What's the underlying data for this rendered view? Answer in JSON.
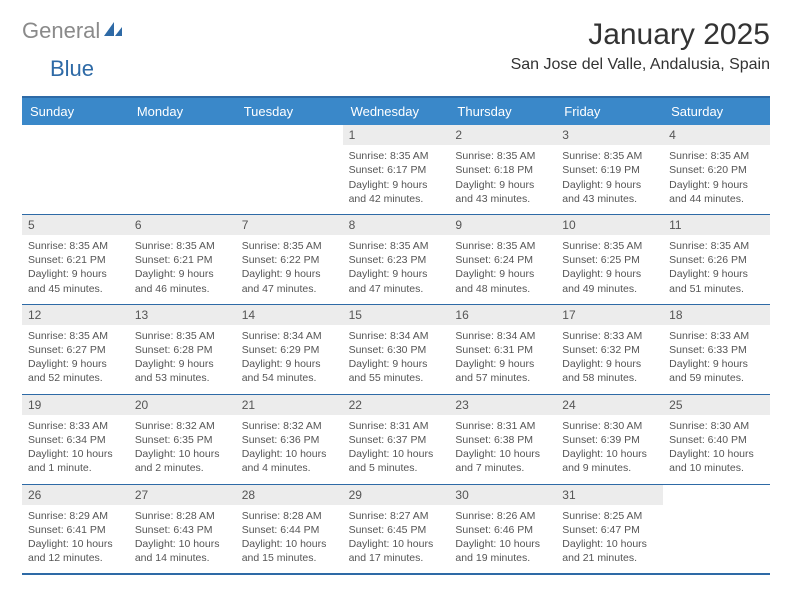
{
  "brand": {
    "left": "General",
    "right": "Blue"
  },
  "title": "January 2025",
  "location": "San Jose del Valle, Andalusia, Spain",
  "colors": {
    "header_bg": "#3a88c9",
    "border": "#2e6aa6",
    "daynum_bg": "#ececec"
  },
  "weekdays": [
    "Sunday",
    "Monday",
    "Tuesday",
    "Wednesday",
    "Thursday",
    "Friday",
    "Saturday"
  ],
  "weeks": [
    [
      {
        "n": "",
        "sr": "",
        "ss": "",
        "dl": ""
      },
      {
        "n": "",
        "sr": "",
        "ss": "",
        "dl": ""
      },
      {
        "n": "",
        "sr": "",
        "ss": "",
        "dl": ""
      },
      {
        "n": "1",
        "sr": "8:35 AM",
        "ss": "6:17 PM",
        "dl": "9 hours and 42 minutes."
      },
      {
        "n": "2",
        "sr": "8:35 AM",
        "ss": "6:18 PM",
        "dl": "9 hours and 43 minutes."
      },
      {
        "n": "3",
        "sr": "8:35 AM",
        "ss": "6:19 PM",
        "dl": "9 hours and 43 minutes."
      },
      {
        "n": "4",
        "sr": "8:35 AM",
        "ss": "6:20 PM",
        "dl": "9 hours and 44 minutes."
      }
    ],
    [
      {
        "n": "5",
        "sr": "8:35 AM",
        "ss": "6:21 PM",
        "dl": "9 hours and 45 minutes."
      },
      {
        "n": "6",
        "sr": "8:35 AM",
        "ss": "6:21 PM",
        "dl": "9 hours and 46 minutes."
      },
      {
        "n": "7",
        "sr": "8:35 AM",
        "ss": "6:22 PM",
        "dl": "9 hours and 47 minutes."
      },
      {
        "n": "8",
        "sr": "8:35 AM",
        "ss": "6:23 PM",
        "dl": "9 hours and 47 minutes."
      },
      {
        "n": "9",
        "sr": "8:35 AM",
        "ss": "6:24 PM",
        "dl": "9 hours and 48 minutes."
      },
      {
        "n": "10",
        "sr": "8:35 AM",
        "ss": "6:25 PM",
        "dl": "9 hours and 49 minutes."
      },
      {
        "n": "11",
        "sr": "8:35 AM",
        "ss": "6:26 PM",
        "dl": "9 hours and 51 minutes."
      }
    ],
    [
      {
        "n": "12",
        "sr": "8:35 AM",
        "ss": "6:27 PM",
        "dl": "9 hours and 52 minutes."
      },
      {
        "n": "13",
        "sr": "8:35 AM",
        "ss": "6:28 PM",
        "dl": "9 hours and 53 minutes."
      },
      {
        "n": "14",
        "sr": "8:34 AM",
        "ss": "6:29 PM",
        "dl": "9 hours and 54 minutes."
      },
      {
        "n": "15",
        "sr": "8:34 AM",
        "ss": "6:30 PM",
        "dl": "9 hours and 55 minutes."
      },
      {
        "n": "16",
        "sr": "8:34 AM",
        "ss": "6:31 PM",
        "dl": "9 hours and 57 minutes."
      },
      {
        "n": "17",
        "sr": "8:33 AM",
        "ss": "6:32 PM",
        "dl": "9 hours and 58 minutes."
      },
      {
        "n": "18",
        "sr": "8:33 AM",
        "ss": "6:33 PM",
        "dl": "9 hours and 59 minutes."
      }
    ],
    [
      {
        "n": "19",
        "sr": "8:33 AM",
        "ss": "6:34 PM",
        "dl": "10 hours and 1 minute."
      },
      {
        "n": "20",
        "sr": "8:32 AM",
        "ss": "6:35 PM",
        "dl": "10 hours and 2 minutes."
      },
      {
        "n": "21",
        "sr": "8:32 AM",
        "ss": "6:36 PM",
        "dl": "10 hours and 4 minutes."
      },
      {
        "n": "22",
        "sr": "8:31 AM",
        "ss": "6:37 PM",
        "dl": "10 hours and 5 minutes."
      },
      {
        "n": "23",
        "sr": "8:31 AM",
        "ss": "6:38 PM",
        "dl": "10 hours and 7 minutes."
      },
      {
        "n": "24",
        "sr": "8:30 AM",
        "ss": "6:39 PM",
        "dl": "10 hours and 9 minutes."
      },
      {
        "n": "25",
        "sr": "8:30 AM",
        "ss": "6:40 PM",
        "dl": "10 hours and 10 minutes."
      }
    ],
    [
      {
        "n": "26",
        "sr": "8:29 AM",
        "ss": "6:41 PM",
        "dl": "10 hours and 12 minutes."
      },
      {
        "n": "27",
        "sr": "8:28 AM",
        "ss": "6:43 PM",
        "dl": "10 hours and 14 minutes."
      },
      {
        "n": "28",
        "sr": "8:28 AM",
        "ss": "6:44 PM",
        "dl": "10 hours and 15 minutes."
      },
      {
        "n": "29",
        "sr": "8:27 AM",
        "ss": "6:45 PM",
        "dl": "10 hours and 17 minutes."
      },
      {
        "n": "30",
        "sr": "8:26 AM",
        "ss": "6:46 PM",
        "dl": "10 hours and 19 minutes."
      },
      {
        "n": "31",
        "sr": "8:25 AM",
        "ss": "6:47 PM",
        "dl": "10 hours and 21 minutes."
      },
      {
        "n": "",
        "sr": "",
        "ss": "",
        "dl": ""
      }
    ]
  ],
  "labels": {
    "sunrise": "Sunrise:",
    "sunset": "Sunset:",
    "daylight": "Daylight:"
  }
}
